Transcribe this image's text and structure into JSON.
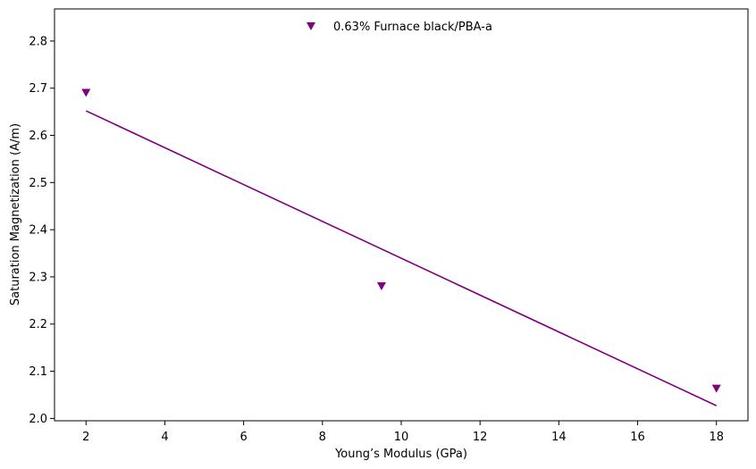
{
  "chart_data": {
    "type": "scatter",
    "title": "",
    "xlabel": "Young’s Modulus (GPa)",
    "ylabel": "Saturation Magnetization (A/m)",
    "xlim": [
      1.2,
      18.8
    ],
    "ylim": [
      1.995,
      2.868
    ],
    "xticks": [
      2,
      4,
      6,
      8,
      10,
      12,
      14,
      16,
      18
    ],
    "yticks": [
      2.0,
      2.1,
      2.2,
      2.3,
      2.4,
      2.5,
      2.6,
      2.7,
      2.8
    ],
    "grid": false,
    "legend_position": "top-center",
    "series": [
      {
        "name": "0.63% Furnace black/PBA-a",
        "marker": "triangle-down",
        "color": "#800080",
        "points": [
          {
            "x": 2.0,
            "y": 2.69
          },
          {
            "x": 9.5,
            "y": 2.28
          },
          {
            "x": 18.0,
            "y": 2.063
          }
        ],
        "fit_line": {
          "x": [
            2.0,
            18.0
          ],
          "y": [
            2.652,
            2.027
          ]
        }
      }
    ]
  }
}
